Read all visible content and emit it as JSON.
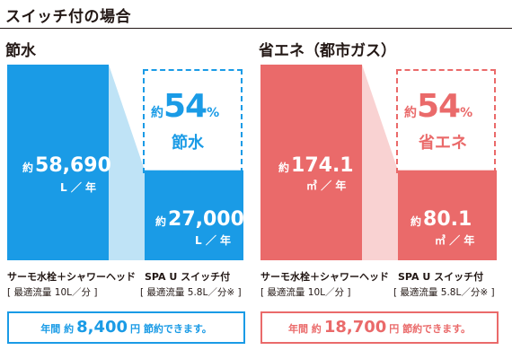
{
  "header": {
    "title": "スイッチ付の場合"
  },
  "chart_data": [
    {
      "type": "bar",
      "title": "節水",
      "categories": [
        "サーモ水栓＋シャワーヘッド",
        "SPA U スイッチ付"
      ],
      "category_subs": [
        "[ 最適流量 10L／分 ]",
        "[ 最適流量 5.8L／分※ ]"
      ],
      "values": [
        58690,
        27000
      ],
      "value_prefix": "約",
      "value_labels": [
        "58,690",
        "27,000"
      ],
      "unit": "L ／ 年",
      "ylim": [
        0,
        58690
      ],
      "callout": {
        "prefix": "約",
        "number": "54",
        "suffix": "%",
        "label": "節水"
      },
      "summary": {
        "pre": "年間 約",
        "value": "8,400",
        "post": "円 節約できます。"
      },
      "colors": {
        "bar": "#1a9be6",
        "connector": "#bfe3f6",
        "dash": "#1a9be6",
        "text": "#1a9be6"
      }
    },
    {
      "type": "bar",
      "title": "省エネ（都市ガス）",
      "categories": [
        "サーモ水栓＋シャワーヘッド",
        "SPA U スイッチ付"
      ],
      "category_subs": [
        "[ 最適流量 10L／分 ]",
        "[ 最適流量 5.8L／分※ ]"
      ],
      "values": [
        174.1,
        80.1
      ],
      "value_prefix": "約",
      "value_labels": [
        "174.1",
        "80.1"
      ],
      "unit": "㎥ ／ 年",
      "ylim": [
        0,
        174.1
      ],
      "callout": {
        "prefix": "約",
        "number": "54",
        "suffix": "%",
        "label": "省エネ"
      },
      "summary": {
        "pre": "年間 約",
        "value": "18,700",
        "post": "円 節約できます。"
      },
      "colors": {
        "bar": "#ea6a6a",
        "connector": "#f9d2d2",
        "dash": "#ea6a6a",
        "text": "#ea6a6a"
      }
    }
  ]
}
